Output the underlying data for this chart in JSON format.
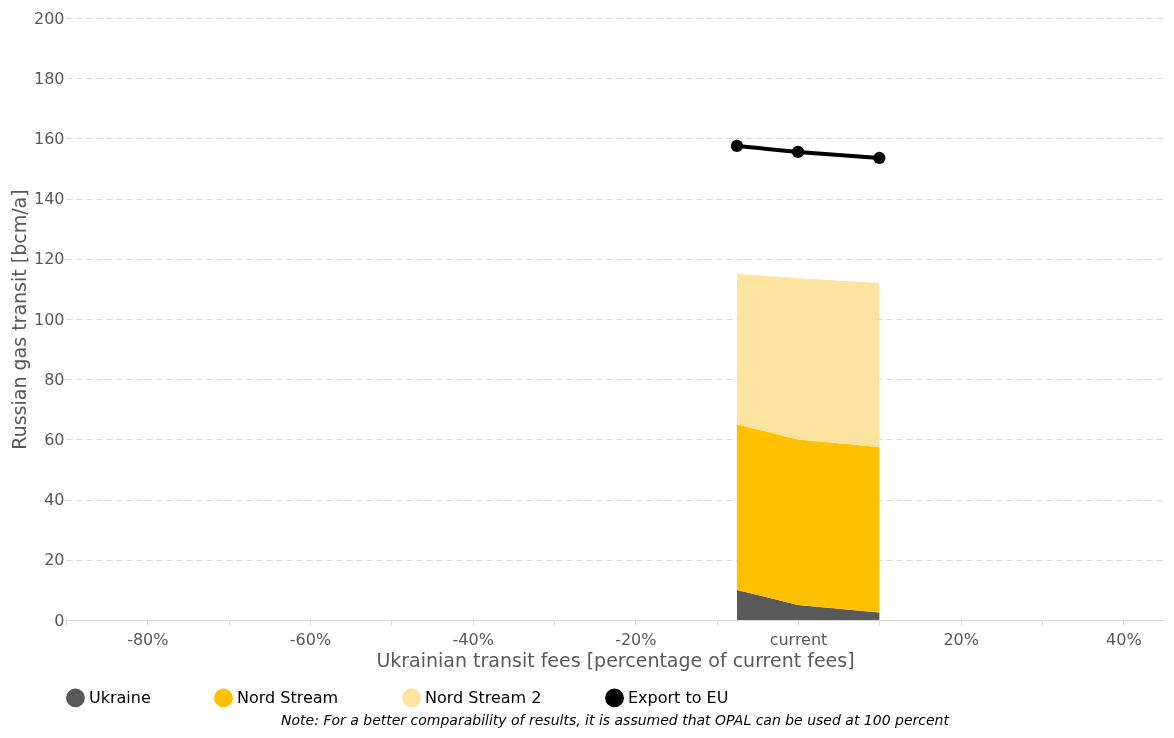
{
  "chart_data": {
    "type": "area",
    "stacked": true,
    "xlabel": "Ukrainian transit fees [percentage of current fees]",
    "ylabel": "Russian gas transit [bcm/a]",
    "x": [
      -7.5,
      0,
      10
    ],
    "series": [
      {
        "name": "Ukraine",
        "color": "#595959",
        "values": [
          10,
          5,
          2.5
        ]
      },
      {
        "name": "Nord Stream",
        "color": "#ffc000",
        "values": [
          55,
          55,
          55
        ]
      },
      {
        "name": "Nord Stream 2",
        "color": "#fde3a0",
        "values": [
          50,
          53.5,
          54.5
        ]
      },
      {
        "name": "Export to EU",
        "color": "#000000",
        "type": "line",
        "marker": "circle",
        "values": [
          157.5,
          155.5,
          153.5
        ]
      }
    ],
    "xlim": [
      -90,
      45
    ],
    "xticks": [
      {
        "value": -90,
        "label": null
      },
      {
        "value": -80,
        "label": "-80%"
      },
      {
        "value": -70,
        "label": null
      },
      {
        "value": -60,
        "label": "-60%"
      },
      {
        "value": -50,
        "label": null
      },
      {
        "value": -40,
        "label": "-40%"
      },
      {
        "value": -30,
        "label": null
      },
      {
        "value": -20,
        "label": "-20%"
      },
      {
        "value": -10,
        "label": null
      },
      {
        "value": 0,
        "label": "current"
      },
      {
        "value": 10,
        "label": null
      },
      {
        "value": 20,
        "label": "20%"
      },
      {
        "value": 30,
        "label": null
      },
      {
        "value": 40,
        "label": "40%"
      }
    ],
    "ylim": [
      0,
      200
    ],
    "yticks": [
      0,
      20,
      40,
      60,
      80,
      100,
      120,
      140,
      160,
      180,
      200
    ],
    "grid": "y",
    "legend": "bottom",
    "annotations": [
      "Note: For a better comparability of results, it is assumed that OPAL can be used at 100 percent"
    ]
  }
}
